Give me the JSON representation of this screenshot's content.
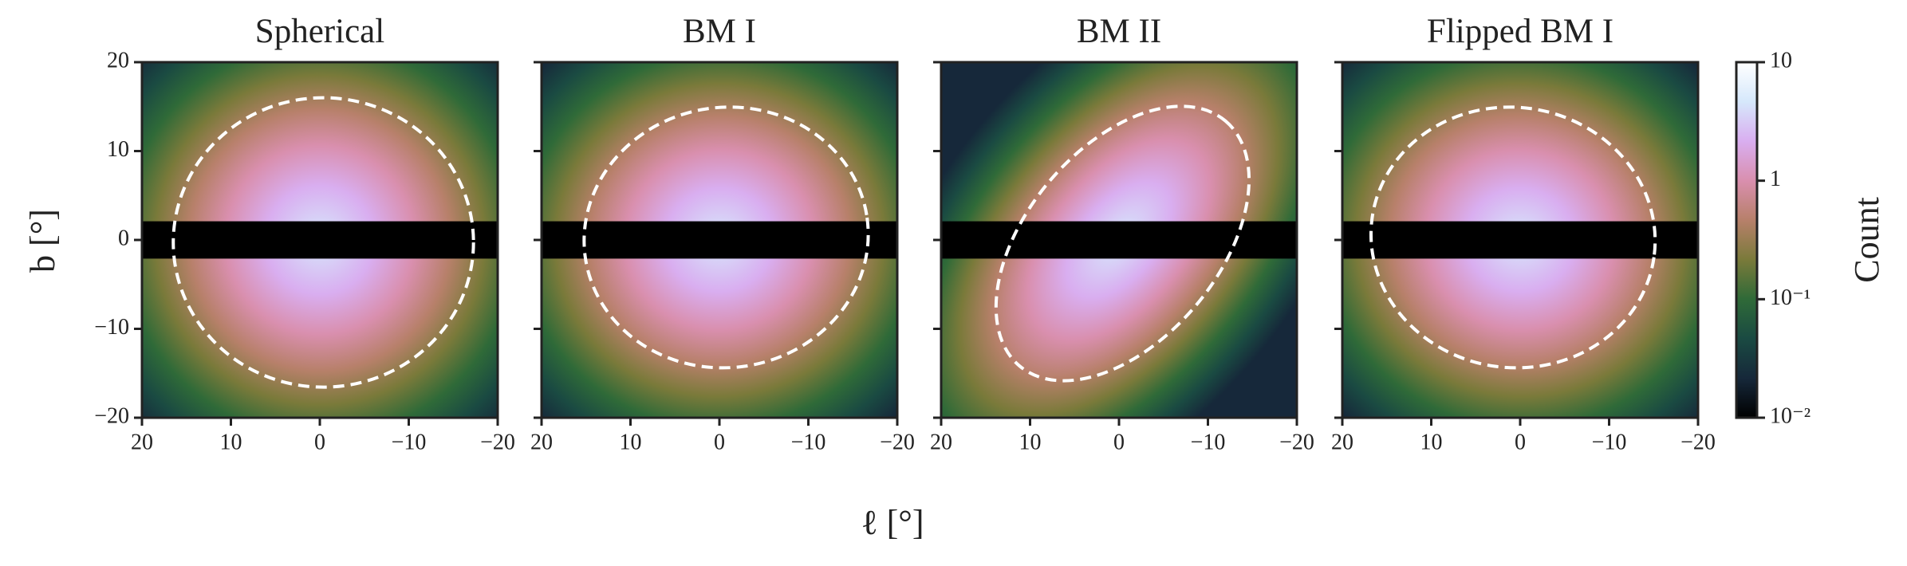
{
  "xlabel": "ℓ [°]",
  "ylabel": "b [°]",
  "colorbar": {
    "label": "Count",
    "scale": "log",
    "lim": [
      0.01,
      10
    ],
    "ticks": [
      10,
      1,
      {
        "value": 0.1,
        "label": "10⁻¹"
      },
      {
        "value": 0.01,
        "label": "10⁻²"
      }
    ],
    "colors": [
      "#000000",
      "#16283a",
      "#1a4a42",
      "#2f6a38",
      "#7a7a3a",
      "#b7806a",
      "#d98fae",
      "#d9aef0",
      "#d6e8fb",
      "#ffffff"
    ]
  },
  "chart_data": [
    {
      "type": "heatmap",
      "title": "Spherical",
      "xlim": [
        20,
        -20
      ],
      "ylim": [
        -20,
        20
      ],
      "xticks": [
        20,
        10,
        0,
        {
          "value": -10,
          "label": "−10"
        },
        {
          "value": -20,
          "label": "−20"
        }
      ],
      "yticks": [
        {
          "value": -20,
          "label": "−20"
        },
        {
          "value": -10,
          "label": "−10"
        },
        0,
        10,
        20
      ]
    },
    {
      "type": "heatmap",
      "title": "BM I",
      "xlim": [
        20,
        -20
      ],
      "ylim": [
        -20,
        20
      ],
      "xticks": [
        20,
        10,
        0,
        {
          "value": -10,
          "label": "−10"
        },
        {
          "value": -20,
          "label": "−20"
        }
      ],
      "yticks": [
        -20,
        -10,
        0,
        10,
        20
      ]
    },
    {
      "type": "heatmap",
      "title": "BM II",
      "xlim": [
        20,
        -20
      ],
      "ylim": [
        -20,
        20
      ],
      "xticks": [
        20,
        10,
        0,
        {
          "value": -10,
          "label": "−10"
        },
        {
          "value": -20,
          "label": "−20"
        }
      ],
      "yticks": [
        -20,
        -10,
        0,
        10,
        20
      ]
    },
    {
      "type": "heatmap",
      "title": "Flipped BM I",
      "xlim": [
        20,
        -20
      ],
      "ylim": [
        -20,
        20
      ],
      "xticks": [
        20,
        10,
        0,
        {
          "value": -10,
          "label": "−10"
        },
        {
          "value": -20,
          "label": "−20"
        }
      ],
      "yticks": [
        -20,
        -10,
        0,
        10,
        20
      ]
    }
  ]
}
